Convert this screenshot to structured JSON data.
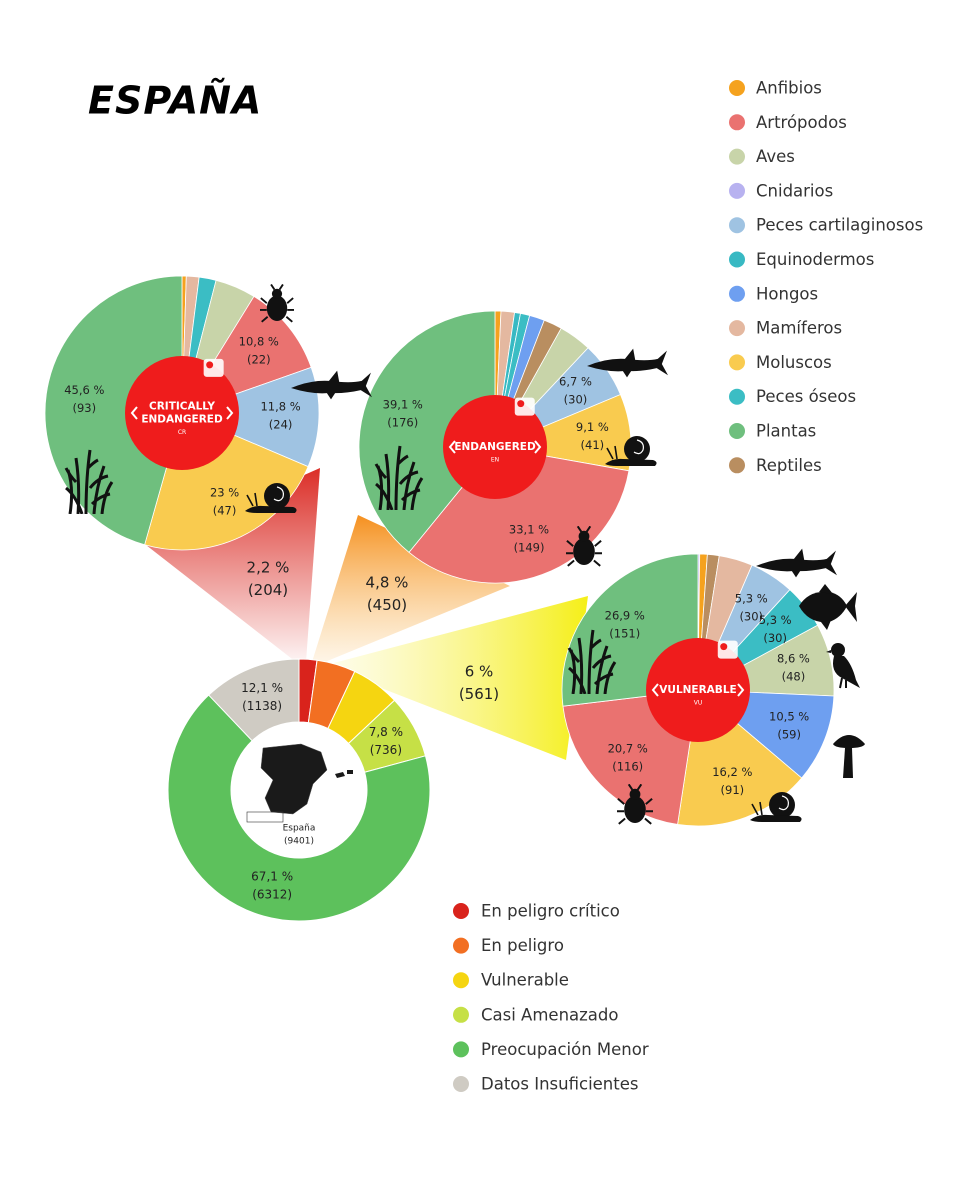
{
  "title": "ESPAÑA",
  "species_legend": [
    {
      "name": "Anfibios",
      "color": "#f5a21e"
    },
    {
      "name": "Artrópodos",
      "color": "#ea7270"
    },
    {
      "name": "Aves",
      "color": "#c8d4a9"
    },
    {
      "name": "Cnidarios",
      "color": "#b8b2f0"
    },
    {
      "name": "Peces cartilaginosos",
      "color": "#9fc3e2"
    },
    {
      "name": "Equinodermos",
      "color": "#38b9c3"
    },
    {
      "name": "Hongos",
      "color": "#6e9ff0"
    },
    {
      "name": "Mamíferos",
      "color": "#e4b8a0"
    },
    {
      "name": "Moluscos",
      "color": "#f9cb4f"
    },
    {
      "name": "Peces óseos",
      "color": "#3bbdc4"
    },
    {
      "name": "Plantas",
      "color": "#6fbf7e"
    },
    {
      "name": "Reptiles",
      "color": "#b98e60"
    }
  ],
  "chart_data": [
    {
      "type": "donut",
      "center_label": "España",
      "total": 9401,
      "total_label": "(9401)",
      "categories": [
        "En peligro crítico",
        "En peligro",
        "Vulnerable",
        "Casi Amenazado",
        "Preocupación Menor",
        "Datos Insuficientes"
      ],
      "colors": [
        "#d9231c",
        "#f26f22",
        "#f5d511",
        "#c6e046",
        "#5dc15c",
        "#cfcbc3"
      ],
      "values": [
        2.2,
        4.8,
        6,
        7.8,
        67.1,
        12.1
      ],
      "value_labels": [
        "2,2 %",
        "4,8 %",
        "6 %",
        "7,8 %",
        "67,1 %",
        "12,1 %"
      ],
      "counts": [
        204,
        450,
        561,
        736,
        6312,
        1138
      ],
      "count_labels": [
        "(204)",
        "(450)",
        "(561)",
        "(736)",
        "(6312)",
        "(1138)"
      ]
    },
    {
      "type": "pie",
      "badge_lines": [
        "CRITICALLY",
        "ENDANGERED"
      ],
      "badge_code": "CR",
      "categories": [
        "Anfibios",
        "Mamíferos",
        "Peces óseos",
        "Aves",
        "Artrópodos",
        "Peces cartilaginosos",
        "Moluscos",
        "Plantas"
      ],
      "values": [
        0.5,
        1.5,
        2,
        4.8,
        10.8,
        11.8,
        23,
        45.6
      ],
      "value_labels": [
        null,
        null,
        null,
        null,
        "10,8 %",
        "11,8 %",
        "23 %",
        "45,6 %"
      ],
      "counts": [
        1,
        3,
        4,
        10,
        22,
        24,
        47,
        93
      ],
      "count_labels": [
        null,
        null,
        null,
        null,
        "(22)",
        "(24)",
        "(47)",
        "(93)"
      ]
    },
    {
      "type": "pie",
      "badge_lines": [
        "ENDANGERED"
      ],
      "badge_code": "EN",
      "categories": [
        "Anfibios",
        "Mamíferos",
        "Equinodermos",
        "Peces óseos",
        "Hongos",
        "Reptiles",
        "Aves",
        "Peces cartilaginosos",
        "Moluscos",
        "Artrópodos",
        "Plantas"
      ],
      "values": [
        0.7,
        1.6,
        0.7,
        1.1,
        1.8,
        2.2,
        3.9,
        6.7,
        9.1,
        33.1,
        39.1
      ],
      "value_labels": [
        null,
        null,
        null,
        null,
        null,
        null,
        null,
        "6,7 %",
        "9,1 %",
        "33,1 %",
        "39,1 %"
      ],
      "counts": [
        3,
        7,
        3,
        5,
        8,
        10,
        18,
        30,
        41,
        149,
        176
      ],
      "count_labels": [
        null,
        null,
        null,
        null,
        null,
        null,
        null,
        "(30)",
        "(41)",
        "(149)",
        "(176)"
      ]
    },
    {
      "type": "pie",
      "badge_lines": [
        "VULNERABLE"
      ],
      "badge_code": "VU",
      "categories": [
        "Cnidarios",
        "Anfibios",
        "Reptiles",
        "Mamíferos",
        "Peces cartilaginosos",
        "Peces óseos",
        "Aves",
        "Hongos",
        "Moluscos",
        "Artrópodos",
        "Plantas"
      ],
      "values": [
        0.2,
        0.9,
        1.4,
        4.0,
        5.3,
        5.3,
        8.6,
        10.5,
        16.2,
        20.7,
        26.9
      ],
      "value_labels": [
        null,
        null,
        null,
        null,
        "5,3 %",
        "5,3 %",
        "8,6 %",
        "10,5 %",
        "16,2 %",
        "20,7 %",
        "26,9 %"
      ],
      "counts": [
        1,
        5,
        8,
        22,
        30,
        30,
        48,
        59,
        91,
        116,
        151
      ],
      "count_labels": [
        null,
        null,
        null,
        null,
        "(30)",
        "(30)",
        "(48)",
        "(59)",
        "(91)",
        "(116)",
        "(151)"
      ]
    }
  ]
}
